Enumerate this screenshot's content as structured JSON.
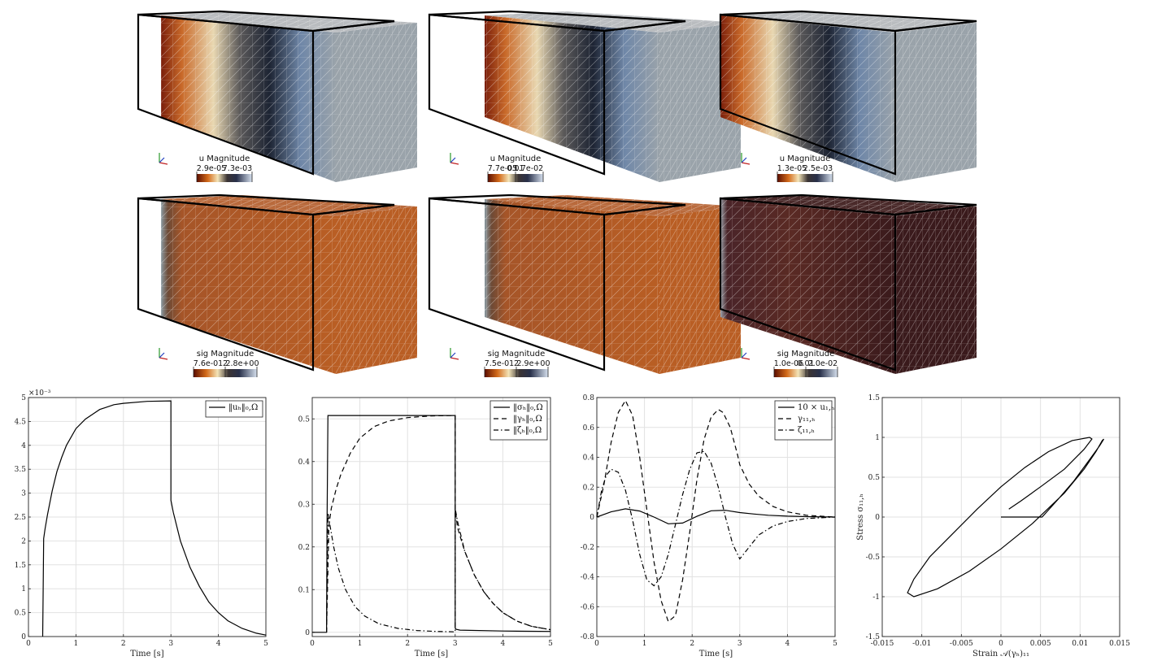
{
  "panels3d": [
    {
      "colorbar": {
        "title": "u Magnitude",
        "ticks": [
          "2.9e-05",
          "7.3e-03"
        ]
      },
      "field": "u",
      "offset": 28
    },
    {
      "colorbar": {
        "title": "u Magnitude",
        "ticks": [
          "7.7e-05",
          "0.01",
          "1.7e-02"
        ]
      },
      "field": "u",
      "offset": 68
    },
    {
      "colorbar": {
        "title": "u Magnitude",
        "ticks": [
          "1.3e-05",
          "2.5e-03"
        ]
      },
      "field": "u",
      "offset": 0
    },
    {
      "colorbar": {
        "title": "sig Magnitude",
        "ticks": [
          "7.6e-01",
          "2",
          "2.8e+00"
        ]
      },
      "field": "sig",
      "offset": 28
    },
    {
      "colorbar": {
        "title": "sig Magnitude",
        "ticks": [
          "7.5e-01",
          "2",
          "2.9e+00"
        ]
      },
      "field": "sig",
      "offset": 68
    },
    {
      "colorbar": {
        "title": "sig Magnitude",
        "ticks": [
          "1.0e-06",
          "0.01",
          "2.0e-02"
        ]
      },
      "field": "sig_dark",
      "offset": 0
    }
  ],
  "colors": {
    "copper": "#b95e24",
    "steel": "#9aa3aa",
    "dark": "#3a1a1c",
    "edge": "#d9d4d0"
  },
  "chart_data": [
    {
      "type": "line",
      "xlabel": "Time [s]",
      "ylabel": "",
      "xlim": [
        0,
        5
      ],
      "ylim": [
        0,
        5
      ],
      "y_exponent_label": "×10⁻³",
      "xticks": [
        0,
        1,
        2,
        3,
        4,
        5
      ],
      "yticks": [
        0,
        0.5,
        1,
        1.5,
        2,
        2.5,
        3,
        3.5,
        4,
        4.5,
        5
      ],
      "grid": true,
      "legend": "top-right",
      "series": [
        {
          "name": "‖uₕ‖₀,Ω",
          "style": "solid",
          "x": [
            0.3,
            0.31,
            0.32,
            0.35,
            0.4,
            0.5,
            0.6,
            0.7,
            0.8,
            1.0,
            1.2,
            1.5,
            1.8,
            2.0,
            2.5,
            3.0,
            3.0,
            3.05,
            3.2,
            3.4,
            3.6,
            3.8,
            4.0,
            4.2,
            4.5,
            4.8,
            5.0
          ],
          "y": [
            0,
            1.0,
            2.05,
            2.25,
            2.55,
            3.05,
            3.45,
            3.75,
            4.0,
            4.35,
            4.55,
            4.75,
            4.85,
            4.88,
            4.92,
            4.93,
            2.85,
            2.6,
            2.0,
            1.45,
            1.05,
            0.72,
            0.5,
            0.33,
            0.17,
            0.07,
            0.03
          ]
        }
      ]
    },
    {
      "type": "line",
      "xlabel": "Time [s]",
      "ylabel": "",
      "xlim": [
        0,
        5
      ],
      "ylim": [
        -0.01,
        0.55
      ],
      "xticks": [
        0,
        1,
        2,
        3,
        4,
        5
      ],
      "yticks": [
        0,
        0.1,
        0.2,
        0.3,
        0.4,
        0.5
      ],
      "grid": true,
      "legend": "top-right",
      "series": [
        {
          "name": "‖σₕ‖₀,Ω",
          "style": "solid",
          "x": [
            0,
            0.3,
            0.31,
            0.33,
            1.0,
            2.0,
            3.0,
            3.0,
            3.02,
            3.1,
            4.0,
            5.0
          ],
          "y": [
            0,
            0,
            0.25,
            0.508,
            0.508,
            0.508,
            0.508,
            0.01,
            0.007,
            0.005,
            0.003,
            0.002
          ]
        },
        {
          "name": "‖γₕ‖₀,Ω",
          "style": "dashed",
          "x": [
            0.3,
            0.35,
            0.4,
            0.5,
            0.6,
            0.8,
            1.0,
            1.3,
            1.6,
            2.0,
            2.5,
            3.0,
            3.0,
            3.05,
            3.2,
            3.4,
            3.6,
            3.8,
            4.0,
            4.3,
            4.6,
            5.0
          ],
          "y": [
            0,
            0.25,
            0.29,
            0.335,
            0.37,
            0.42,
            0.455,
            0.482,
            0.495,
            0.503,
            0.507,
            0.508,
            0.29,
            0.245,
            0.19,
            0.135,
            0.095,
            0.067,
            0.046,
            0.026,
            0.014,
            0.006
          ]
        },
        {
          "name": "‖ζₕ‖₀,Ω",
          "style": "dashdot",
          "x": [
            0.3,
            0.33,
            0.38,
            0.45,
            0.55,
            0.7,
            0.9,
            1.1,
            1.4,
            1.8,
            2.2,
            2.6,
            3.0,
            3.0,
            3.05,
            3.2,
            3.4,
            3.6,
            3.8,
            4.0,
            4.3,
            4.6,
            5.0
          ],
          "y": [
            0,
            0.28,
            0.245,
            0.2,
            0.15,
            0.1,
            0.06,
            0.038,
            0.02,
            0.009,
            0.004,
            0.002,
            0.001,
            0.29,
            0.26,
            0.19,
            0.135,
            0.095,
            0.067,
            0.046,
            0.026,
            0.014,
            0.006
          ]
        }
      ]
    },
    {
      "type": "line",
      "xlabel": "Time [s]",
      "ylabel": "",
      "xlim": [
        0,
        5
      ],
      "ylim": [
        -0.8,
        0.8
      ],
      "xticks": [
        0,
        1,
        2,
        3,
        4,
        5
      ],
      "yticks": [
        -0.8,
        -0.6,
        -0.4,
        -0.2,
        0,
        0.2,
        0.4,
        0.6,
        0.8
      ],
      "grid": true,
      "legend": "top-right",
      "series": [
        {
          "name": "10 × u₁,ₕ",
          "style": "solid",
          "x": [
            0,
            0.3,
            0.6,
            0.9,
            1.2,
            1.5,
            1.8,
            2.1,
            2.4,
            2.7,
            3.0,
            3.3,
            3.6,
            4.0,
            4.5,
            5.0
          ],
          "y": [
            0,
            0.035,
            0.055,
            0.04,
            0.0,
            -0.045,
            -0.04,
            0.005,
            0.042,
            0.045,
            0.03,
            0.02,
            0.012,
            0.006,
            0.002,
            0
          ]
        },
        {
          "name": "γ₁₁,ₕ",
          "style": "dashed",
          "x": [
            0,
            0.15,
            0.3,
            0.45,
            0.6,
            0.75,
            0.9,
            1.05,
            1.2,
            1.35,
            1.5,
            1.65,
            1.8,
            1.95,
            2.1,
            2.25,
            2.4,
            2.55,
            2.65,
            2.8,
            2.95,
            3.0,
            3.2,
            3.4,
            3.7,
            4.0,
            4.4,
            5.0
          ],
          "y": [
            0,
            0.22,
            0.5,
            0.7,
            0.78,
            0.68,
            0.4,
            0.05,
            -0.3,
            -0.56,
            -0.7,
            -0.66,
            -0.42,
            -0.1,
            0.25,
            0.52,
            0.67,
            0.72,
            0.7,
            0.6,
            0.42,
            0.35,
            0.22,
            0.14,
            0.07,
            0.035,
            0.012,
            0
          ]
        },
        {
          "name": "ζ₁₁,ₕ",
          "style": "dashdot",
          "x": [
            0,
            0.1,
            0.2,
            0.3,
            0.45,
            0.6,
            0.75,
            0.9,
            1.05,
            1.2,
            1.35,
            1.5,
            1.65,
            1.8,
            1.95,
            2.1,
            2.25,
            2.4,
            2.55,
            2.7,
            2.85,
            3.0,
            3.2,
            3.4,
            3.7,
            4.0,
            4.4,
            5.0
          ],
          "y": [
            0,
            0.18,
            0.28,
            0.32,
            0.3,
            0.18,
            -0.02,
            -0.25,
            -0.42,
            -0.46,
            -0.4,
            -0.25,
            -0.05,
            0.15,
            0.32,
            0.43,
            0.44,
            0.36,
            0.2,
            0.0,
            -0.18,
            -0.28,
            -0.2,
            -0.12,
            -0.06,
            -0.03,
            -0.01,
            0
          ]
        }
      ]
    },
    {
      "type": "line",
      "xlabel": "Strain 𝒜(γₕ)₁₁",
      "ylabel": "Stress σ₁₁,ₕ",
      "xlim": [
        -0.015,
        0.015
      ],
      "ylim": [
        -1.5,
        1.5
      ],
      "xticks": [
        -0.015,
        -0.01,
        -0.005,
        0,
        0.005,
        0.01,
        0.015
      ],
      "yticks": [
        -1.5,
        -1,
        -0.5,
        0,
        0.5,
        1,
        1.5
      ],
      "grid": true,
      "legend": "none",
      "series": [
        {
          "name": "",
          "style": "solid",
          "x": [
            0,
            0.0052,
            0.0072,
            0.0092,
            0.0112,
            0.0125,
            0.013,
            0.0128,
            0.012,
            0.0105,
            0.008,
            0.004,
            0.0,
            -0.004,
            -0.008,
            -0.011,
            -0.0118,
            -0.011,
            -0.009,
            -0.006,
            -0.003,
            0.0,
            0.003,
            0.006,
            0.009,
            0.0112,
            0.0115,
            0.0105,
            0.008,
            0.005,
            0.0025,
            0.001
          ],
          "y": [
            0,
            0,
            0.22,
            0.45,
            0.72,
            0.9,
            0.98,
            0.96,
            0.82,
            0.6,
            0.3,
            -0.08,
            -0.4,
            -0.68,
            -0.9,
            -1.0,
            -0.95,
            -0.78,
            -0.5,
            -0.2,
            0.1,
            0.38,
            0.62,
            0.82,
            0.96,
            1.0,
            0.98,
            0.85,
            0.6,
            0.38,
            0.2,
            0.1
          ]
        }
      ]
    }
  ]
}
